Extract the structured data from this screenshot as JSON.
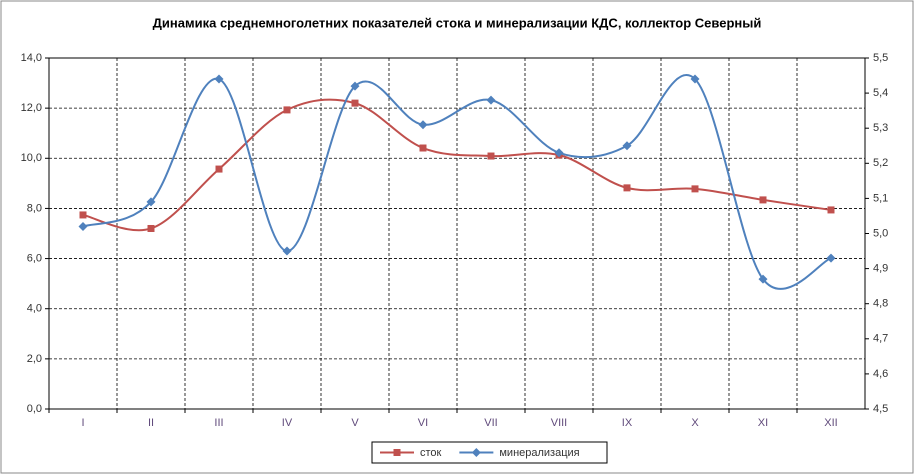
{
  "chart_data": {
    "type": "line",
    "title": "Динамика среднемноголетних показателей стока и минерализации КДС, коллектор Северный",
    "categories": [
      "I",
      "II",
      "III",
      "IV",
      "V",
      "VI",
      "VII",
      "VIII",
      "IX",
      "X",
      "XI",
      "XII"
    ],
    "series": [
      {
        "name": "сток",
        "color": "#c0504d",
        "marker": "square",
        "values": [
          7.74,
          7.2,
          9.57,
          11.93,
          12.2,
          10.41,
          10.09,
          10.13,
          8.82,
          8.78,
          8.34,
          7.94
        ]
      },
      {
        "name": "минерализация",
        "color": "#4f81bd",
        "marker": "diamond",
        "axis": "y2",
        "values": [
          5.02,
          5.09,
          5.44,
          4.95,
          5.42,
          5.31,
          5.38,
          5.23,
          5.25,
          5.44,
          4.87,
          4.93
        ]
      }
    ],
    "ylim": [
      0,
      14
    ],
    "yticks": [
      {
        "value": 0,
        "label": "0,0"
      },
      {
        "value": 2,
        "label": "2,0"
      },
      {
        "value": 4,
        "label": "4,0"
      },
      {
        "value": 6,
        "label": "6,0"
      },
      {
        "value": 8,
        "label": "8,0"
      },
      {
        "value": 10,
        "label": "10,0"
      },
      {
        "value": 12,
        "label": "12,0"
      },
      {
        "value": 14,
        "label": "14,0"
      }
    ],
    "y2lim": [
      4.5,
      5.5
    ],
    "y2ticks": [
      {
        "value": 4.5,
        "label": "4,5"
      },
      {
        "value": 4.6,
        "label": "4,6"
      },
      {
        "value": 4.7,
        "label": "4,7"
      },
      {
        "value": 4.8,
        "label": "4,8"
      },
      {
        "value": 4.9,
        "label": "4,9"
      },
      {
        "value": 5,
        "label": "5,0"
      },
      {
        "value": 5.1,
        "label": "5,1"
      },
      {
        "value": 5.2,
        "label": "5,2"
      },
      {
        "value": 5.3,
        "label": "5,3"
      },
      {
        "value": 5.4,
        "label": "5,4"
      },
      {
        "value": 5.5,
        "label": "5,5"
      }
    ],
    "grid": true,
    "smooth": true,
    "legend": "bottom"
  }
}
